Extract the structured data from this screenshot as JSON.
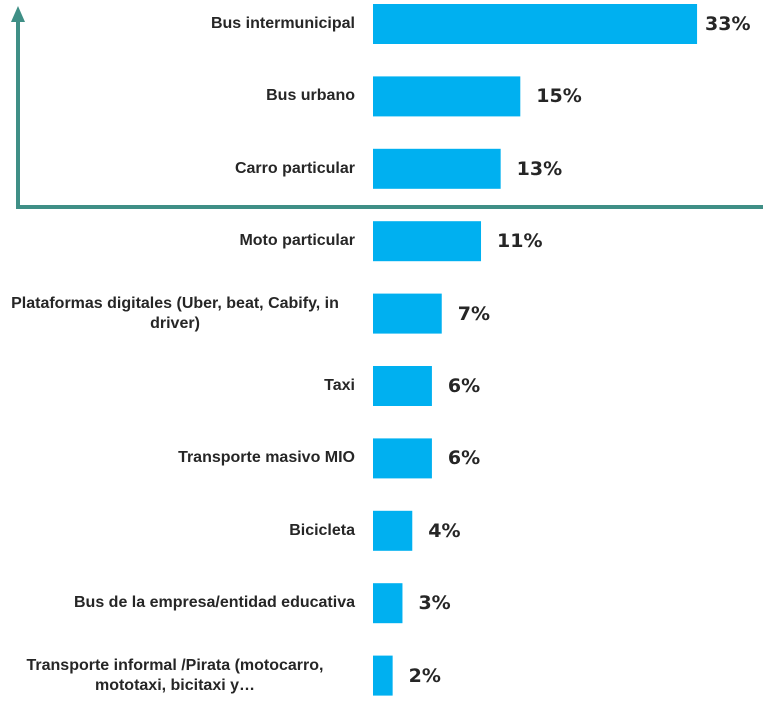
{
  "chart_data": {
    "type": "barh",
    "categories": [
      "Bus intermunicipal",
      "Bus urbano",
      "Carro particular",
      "Moto particular",
      "Plataformas digitales (Uber, beat, Cabify, in driver)",
      "Taxi",
      "Transporte masivo MIO",
      "Bicicleta",
      "Bus de la empresa/entidad educativa",
      "Transporte informal /Pirata (motocarro, mototaxi, bicitaxi y…"
    ],
    "values": [
      33,
      15,
      13,
      11,
      7,
      6,
      6,
      4,
      3,
      2
    ],
    "value_labels": [
      "33%",
      "15%",
      "13%",
      "11%",
      "7%",
      "6%",
      "6%",
      "4%",
      "3%",
      "2%"
    ],
    "color": "#00b0f0"
  }
}
